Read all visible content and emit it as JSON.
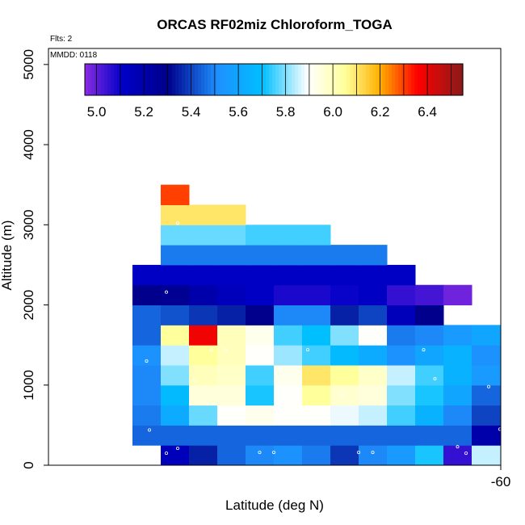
{
  "chart_data": {
    "type": "heatmap",
    "title": "ORCAS RF02miz Chloroform_TOGA",
    "flights_label": "Flts: 2",
    "date_label": "MMDD: 0118",
    "xlabel": "Latitude (deg N)",
    "ylabel": "Altitude (m)",
    "x_ticks": [
      "-60"
    ],
    "y_ticks": [
      "0",
      "1000",
      "2000",
      "3000",
      "4000",
      "5000"
    ],
    "ylim": [
      0,
      5200
    ],
    "colorbar": {
      "range": [
        4.95,
        6.55
      ],
      "ticks": [
        "5.0",
        "5.2",
        "5.4",
        "5.6",
        "5.8",
        "6.0",
        "6.2",
        "6.4"
      ],
      "stops": [
        [
          0.0,
          "#8a2be2"
        ],
        [
          0.1,
          "#0000c8"
        ],
        [
          0.22,
          "#00008b"
        ],
        [
          0.35,
          "#1e90ff"
        ],
        [
          0.47,
          "#00bfff"
        ],
        [
          0.59,
          "#ffffff"
        ],
        [
          0.69,
          "#ffff99"
        ],
        [
          0.78,
          "#ffb000"
        ],
        [
          0.88,
          "#ff0000"
        ],
        [
          1.0,
          "#8b1a1a"
        ]
      ]
    },
    "row_height_m": 250,
    "columns_note": "14 latitude bins, index 0 at left",
    "cells": [
      {
        "row": 0,
        "cols": [
          null,
          null,
          5.15,
          5.35,
          5.45,
          5.5,
          5.52,
          5.48,
          5.38,
          5.5,
          5.55,
          5.72,
          5.05,
          5.85
        ]
      },
      {
        "row": 1,
        "cols": [
          null,
          5.45,
          5.45,
          5.45,
          5.45,
          5.45,
          5.45,
          5.45,
          5.45,
          5.45,
          5.45,
          5.45,
          5.45,
          5.2
        ]
      },
      {
        "row": 2,
        "cols": [
          null,
          5.48,
          5.62,
          5.78,
          5.9,
          5.92,
          5.9,
          5.9,
          5.88,
          5.85,
          5.75,
          5.65,
          5.5,
          5.4
        ]
      },
      {
        "row": 3,
        "cols": [
          null,
          5.5,
          5.68,
          5.95,
          5.95,
          5.72,
          5.9,
          6.05,
          5.97,
          5.95,
          5.8,
          5.72,
          5.6,
          5.45
        ]
      },
      {
        "row": 4,
        "cols": [
          null,
          5.5,
          5.8,
          6.0,
          5.98,
          5.75,
          5.92,
          6.1,
          6.05,
          5.98,
          5.85,
          5.75,
          5.65,
          5.55
        ]
      },
      {
        "row": 5,
        "cols": [
          null,
          5.52,
          5.85,
          6.05,
          6.0,
          5.9,
          5.82,
          5.75,
          5.68,
          5.62,
          5.52,
          5.6,
          5.65,
          5.52
        ]
      },
      {
        "row": 6,
        "cols": [
          null,
          5.45,
          6.05,
          6.38,
          6.0,
          5.92,
          5.75,
          5.7,
          5.8,
          5.9,
          5.48,
          5.5,
          5.55,
          5.6
        ]
      },
      {
        "row": 7,
        "cols": [
          null,
          5.45,
          5.42,
          5.38,
          5.35,
          5.3,
          5.5,
          5.5,
          5.35,
          5.4,
          5.15,
          5.3,
          null,
          null
        ]
      },
      {
        "row": 8,
        "cols": [
          null,
          5.3,
          5.28,
          5.2,
          5.15,
          5.12,
          5.08,
          5.08,
          5.1,
          5.12,
          5.05,
          5.03,
          4.98,
          null
        ]
      },
      {
        "row": 9,
        "cols": [
          null,
          5.12,
          5.12,
          5.12,
          5.12,
          5.12,
          5.12,
          5.12,
          5.12,
          5.12,
          5.12,
          null,
          null,
          null
        ]
      },
      {
        "row": 10,
        "cols": [
          null,
          null,
          5.48,
          5.48,
          5.48,
          5.48,
          5.48,
          5.48,
          5.48,
          5.48,
          null,
          null,
          null,
          null
        ]
      },
      {
        "row": 11,
        "cols": [
          null,
          null,
          5.78,
          5.78,
          5.78,
          5.75,
          5.75,
          5.75,
          null,
          null,
          null,
          null,
          null,
          null
        ]
      },
      {
        "row": 12,
        "cols": [
          null,
          null,
          6.1,
          6.1,
          6.1,
          null,
          null,
          null,
          null,
          null,
          null,
          null,
          null,
          null
        ]
      },
      {
        "row": 13,
        "cols": [
          null,
          null,
          6.3,
          null,
          null,
          null,
          null,
          null,
          null,
          null,
          null,
          null,
          null,
          null
        ]
      }
    ],
    "points": [
      {
        "lat_bin": 2.6,
        "alt": 210
      },
      {
        "lat_bin": 2.2,
        "alt": 150
      },
      {
        "lat_bin": 5.5,
        "alt": 160
      },
      {
        "lat_bin": 6.0,
        "alt": 160
      },
      {
        "lat_bin": 9.0,
        "alt": 160
      },
      {
        "lat_bin": 9.5,
        "alt": 160
      },
      {
        "lat_bin": 12.5,
        "alt": 230
      },
      {
        "lat_bin": 12.8,
        "alt": 150
      },
      {
        "lat_bin": 14.1,
        "alt": 250
      },
      {
        "lat_bin": 1.6,
        "alt": 440
      },
      {
        "lat_bin": 14.0,
        "alt": 450
      },
      {
        "lat_bin": 4.9,
        "alt": 640
      },
      {
        "lat_bin": 6.7,
        "alt": 850
      },
      {
        "lat_bin": 8.4,
        "alt": 870
      },
      {
        "lat_bin": 13.6,
        "alt": 980
      },
      {
        "lat_bin": 3.2,
        "alt": 1060
      },
      {
        "lat_bin": 11.7,
        "alt": 1080
      },
      {
        "lat_bin": 1.5,
        "alt": 1300
      },
      {
        "lat_bin": 3.8,
        "alt": 1440
      },
      {
        "lat_bin": 4.3,
        "alt": 1440
      },
      {
        "lat_bin": 7.2,
        "alt": 1440
      },
      {
        "lat_bin": 11.3,
        "alt": 1440
      },
      {
        "lat_bin": 14.6,
        "alt": 1440
      },
      {
        "lat_bin": 2.2,
        "alt": 2160
      },
      {
        "lat_bin": 13.5,
        "alt": 1820
      },
      {
        "lat_bin": 2.6,
        "alt": 3020
      }
    ]
  }
}
